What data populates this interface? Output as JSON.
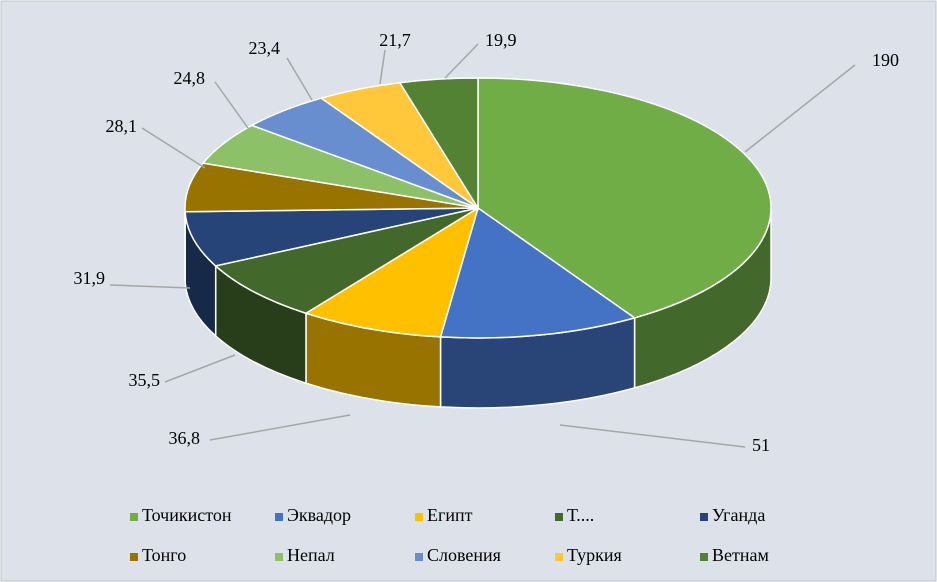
{
  "chart_data": {
    "type": "pie3d",
    "categories": [
      "Точикистон",
      "Эквадор",
      "Египт",
      "Т....",
      "Уганда",
      "Тонго",
      "Непал",
      "Словения",
      "Туркия",
      "Ветнам"
    ],
    "values": [
      190,
      51,
      36.8,
      35.5,
      31.9,
      28.1,
      24.8,
      23.4,
      21.7,
      19.9
    ],
    "value_labels": [
      "190",
      "51",
      "36,8",
      "35,5",
      "31,9",
      "28,1",
      "24,8",
      "23,4",
      "21,7",
      "19,9"
    ],
    "colors": [
      "#70ad47",
      "#4472c4",
      "#ffc000",
      "#43682b",
      "#264478",
      "#997300",
      "#8cc168",
      "#698ed0",
      "#ffc83a",
      "#548235"
    ],
    "legend": "bottom"
  }
}
